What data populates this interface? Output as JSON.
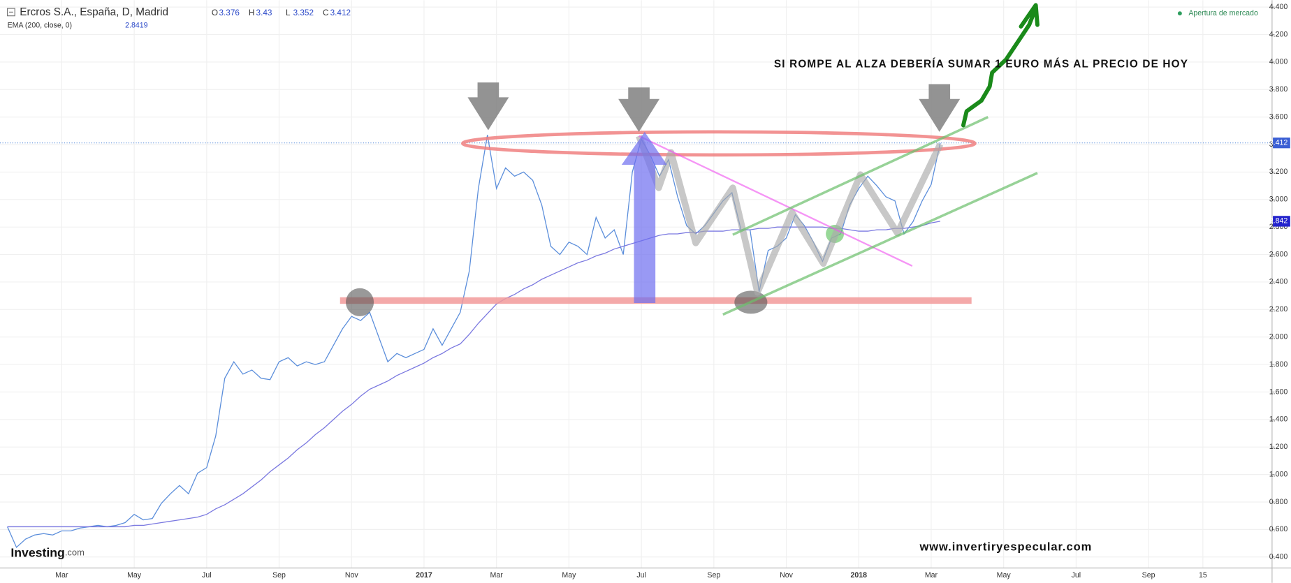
{
  "chart_data": {
    "type": "line",
    "ohlc": [
      {
        "label": "O",
        "value": 3.376
      },
      {
        "label": "H",
        "value": 3.43
      },
      {
        "label": "L",
        "value": 3.352
      },
      {
        "label": "C",
        "value": 3.412
      }
    ],
    "indicator_value": 2.8419,
    "status": "Apertura de mercado",
    "brand": {
      "name": "Investing",
      "suffix": ".com"
    },
    "annotations": [
      "SI ROMPE AL ALZA DEBERÍA SUMAR 1 EURO MÁS AL PRECIO DE HOY",
      "www.invertiryespecular.com"
    ],
    "grid": true,
    "categories": [
      null,
      null,
      null,
      null,
      null,
      null,
      "Mar",
      null,
      null,
      null,
      null,
      null,
      null,
      null,
      "May",
      null,
      null,
      null,
      null,
      null,
      null,
      null,
      "Jul",
      null,
      null,
      null,
      null,
      null,
      null,
      null,
      "Sep",
      null,
      null,
      null,
      null,
      null,
      null,
      null,
      "Nov",
      null,
      null,
      null,
      null,
      null,
      null,
      null,
      "2017",
      null,
      null,
      null,
      null,
      null,
      null,
      null,
      "Mar",
      null,
      null,
      null,
      null,
      null,
      null,
      null,
      "May",
      null,
      null,
      null,
      null,
      null,
      null,
      null,
      "Jul",
      null,
      null,
      null,
      null,
      null,
      null,
      null,
      "Sep",
      null,
      null,
      null,
      null,
      null,
      null,
      null,
      "Nov",
      null,
      null,
      null,
      null,
      null,
      null,
      null,
      "2018",
      null,
      null,
      null,
      null,
      null,
      null,
      null,
      "Mar",
      null,
      null,
      null,
      null,
      null,
      null,
      null,
      "May",
      null,
      null,
      null,
      null,
      null,
      null,
      null,
      "Jul",
      null,
      null,
      null,
      null,
      null,
      null,
      null,
      "Sep",
      null,
      null,
      null,
      null,
      null,
      "15",
      null,
      null,
      null,
      null,
      null,
      null,
      null,
      null
    ],
    "series": [
      {
        "name": "Ercros S.A., España, D, Madrid",
        "color": "#5b8edb",
        "values": [
          0.62,
          0.47,
          0.53,
          0.56,
          0.57,
          0.56,
          0.59,
          0.59,
          0.61,
          0.62,
          0.63,
          0.62,
          0.63,
          0.65,
          0.71,
          0.67,
          0.68,
          0.79,
          0.86,
          0.92,
          0.86,
          1.01,
          1.05,
          1.28,
          1.7,
          1.82,
          1.73,
          1.76,
          1.7,
          1.69,
          1.82,
          1.85,
          1.79,
          1.82,
          1.8,
          1.82,
          1.94,
          2.06,
          2.15,
          2.12,
          2.18,
          2.0,
          1.82,
          1.88,
          1.85,
          1.88,
          1.91,
          2.06,
          1.94,
          2.06,
          2.18,
          2.48,
          3.08,
          3.47,
          3.08,
          3.23,
          3.17,
          3.2,
          3.14,
          2.96,
          2.66,
          2.6,
          2.69,
          2.66,
          2.6,
          2.87,
          2.72,
          2.78,
          2.6,
          3.2,
          3.44,
          3.32,
          3.17,
          3.29,
          3.02,
          2.81,
          2.75,
          2.81,
          2.9,
          2.99,
          3.05,
          2.78,
          2.78,
          2.33,
          2.63,
          2.66,
          2.72,
          2.89,
          2.81,
          2.69,
          2.55,
          2.72,
          2.75,
          2.96,
          3.08,
          3.17,
          3.1,
          3.02,
          2.99,
          2.75,
          2.84,
          2.99,
          3.11,
          3.412,
          null,
          null,
          null,
          null,
          null,
          null,
          null,
          null,
          null,
          null,
          null,
          null,
          null,
          null,
          null,
          null,
          null,
          null,
          null,
          null,
          null,
          null,
          null,
          null,
          null,
          null,
          null,
          null,
          null,
          null,
          null,
          null,
          null,
          null,
          null,
          null,
          null
        ]
      },
      {
        "name": "EMA (200, close, 0)",
        "color": "#7a78e0",
        "values": [
          0.62,
          0.62,
          0.62,
          0.62,
          0.62,
          0.62,
          0.62,
          0.62,
          0.62,
          0.62,
          0.62,
          0.62,
          0.62,
          0.62,
          0.63,
          0.63,
          0.64,
          0.65,
          0.66,
          0.67,
          0.68,
          0.69,
          0.71,
          0.75,
          0.78,
          0.82,
          0.86,
          0.91,
          0.96,
          1.02,
          1.07,
          1.12,
          1.18,
          1.23,
          1.29,
          1.34,
          1.4,
          1.46,
          1.51,
          1.57,
          1.62,
          1.65,
          1.68,
          1.72,
          1.75,
          1.78,
          1.81,
          1.85,
          1.88,
          1.92,
          1.95,
          2.02,
          2.1,
          2.17,
          2.24,
          2.28,
          2.31,
          2.35,
          2.38,
          2.42,
          2.45,
          2.48,
          2.51,
          2.54,
          2.56,
          2.59,
          2.61,
          2.64,
          2.66,
          2.68,
          2.7,
          2.72,
          2.74,
          2.75,
          2.75,
          2.76,
          2.76,
          2.77,
          2.77,
          2.77,
          2.78,
          2.78,
          2.78,
          2.79,
          2.79,
          2.8,
          2.8,
          2.8,
          2.8,
          2.8,
          2.8,
          2.79,
          2.79,
          2.78,
          2.77,
          2.77,
          2.78,
          2.78,
          2.79,
          2.79,
          2.8,
          2.81,
          2.83,
          2.842,
          null,
          null,
          null,
          null,
          null,
          null,
          null,
          null,
          null,
          null,
          null,
          null,
          null,
          null,
          null,
          null,
          null,
          null,
          null,
          null,
          null,
          null,
          null,
          null,
          null,
          null,
          null,
          null,
          null,
          null,
          null,
          null,
          null,
          null,
          null,
          null,
          null
        ]
      }
    ],
    "ylim": [
      0.32,
      4.45
    ],
    "yticks": [
      {
        "value": 0.4,
        "label": "0.400"
      },
      {
        "value": 0.6,
        "label": "0.600"
      },
      {
        "value": 0.8,
        "label": "0.800"
      },
      {
        "value": 1.0,
        "label": "1.000"
      },
      {
        "value": 1.2,
        "label": "1.200"
      },
      {
        "value": 1.4,
        "label": "1.400"
      },
      {
        "value": 1.6,
        "label": "1.600"
      },
      {
        "value": 1.8,
        "label": "1.800"
      },
      {
        "value": 2.0,
        "label": "2.000"
      },
      {
        "value": 2.2,
        "label": "2.200"
      },
      {
        "value": 2.4,
        "label": "2.400"
      },
      {
        "value": 2.6,
        "label": "2.600"
      },
      {
        "value": 2.8,
        "label": "2.800"
      },
      {
        "value": 3.0,
        "label": "3.000"
      },
      {
        "value": 3.2,
        "label": "3.200"
      },
      {
        "value": 3.4,
        "label": "3.400"
      },
      {
        "value": 3.6,
        "label": "3.600"
      },
      {
        "value": 3.8,
        "label": "3.800"
      },
      {
        "value": 4.0,
        "label": "4.000"
      },
      {
        "value": 4.2,
        "label": "4.200"
      },
      {
        "value": 4.4,
        "label": "4.400"
      }
    ]
  }
}
